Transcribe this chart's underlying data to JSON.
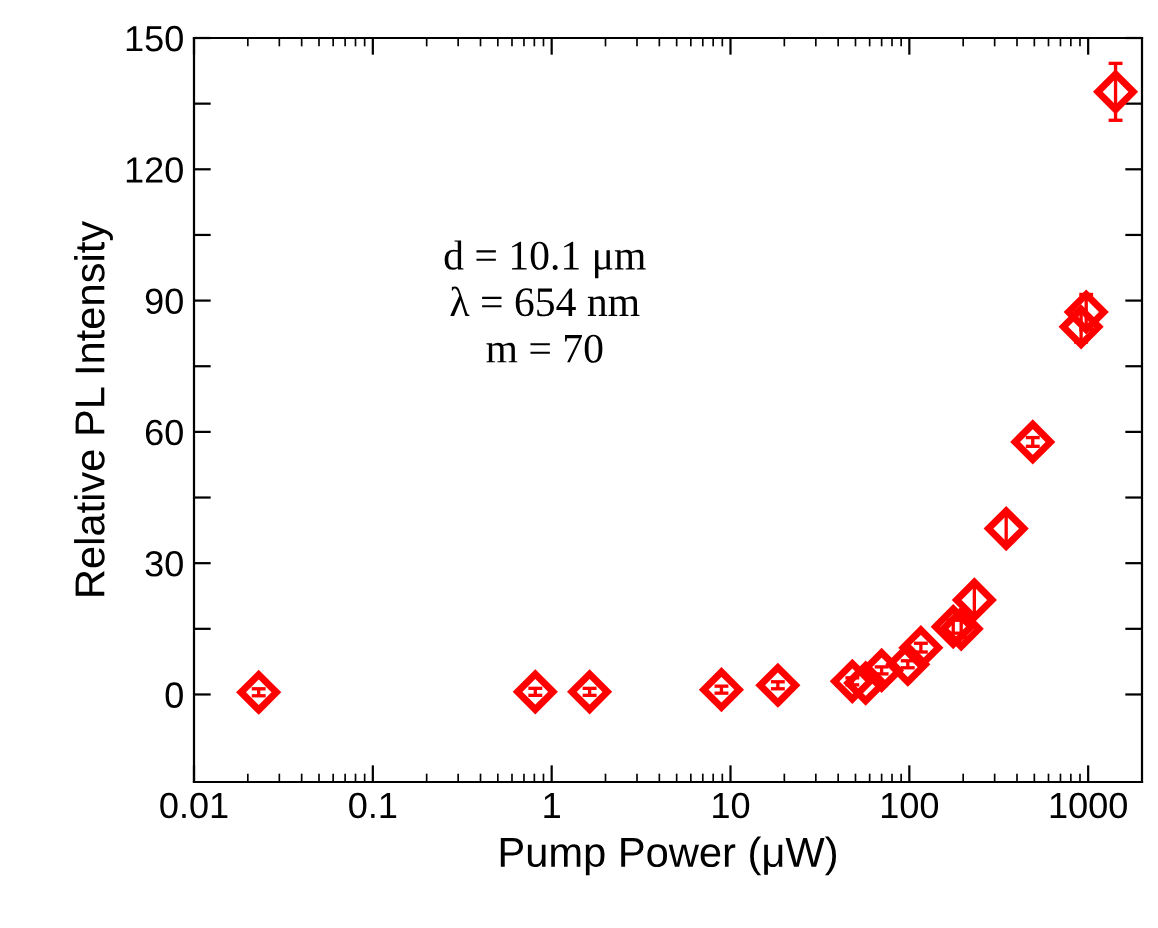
{
  "chart_data": {
    "type": "scatter",
    "xlabel": "Pump Power (μW)",
    "ylabel": "Relative PL Intensity",
    "log": "x",
    "marker": "diamond",
    "grid": false,
    "legend": false,
    "xlim": [
      0.01,
      2000
    ],
    "xticks": [
      0.01,
      0.1,
      1,
      10,
      100,
      1000
    ],
    "ylim": [
      -20,
      150
    ],
    "yticks": [
      0,
      {
        "value": 15,
        "label": null
      },
      30,
      {
        "value": 45,
        "label": null
      },
      60,
      {
        "value": 75,
        "label": null
      },
      90,
      {
        "value": 105,
        "label": null
      },
      120,
      {
        "value": 135,
        "label": null
      },
      150
    ],
    "annotations": [
      {
        "text": "d = 10.1 μm\nλ = 654 nm\nm = 70"
      }
    ],
    "series": [
      {
        "color": "#ff0000",
        "x": [
          0.023,
          0.81,
          1.63,
          8.9,
          18.4,
          48,
          57,
          70,
          98,
          116,
          176,
          195,
          231,
          348,
          490,
          913,
          975,
          1423
        ],
        "values": [
          0.5,
          0.6,
          0.6,
          1.1,
          2.1,
          3.0,
          2.6,
          5.5,
          6.9,
          10.7,
          15.5,
          15,
          21.6,
          37.9,
          57.7,
          84,
          87.4,
          137.7
        ],
        "errors": [
          0.8,
          0.8,
          0.8,
          0.8,
          0.8,
          0.8,
          null,
          0.8,
          0.8,
          1,
          1.5,
          2,
          3,
          3,
          1,
          3.5,
          4,
          6.5
        ]
      }
    ]
  }
}
